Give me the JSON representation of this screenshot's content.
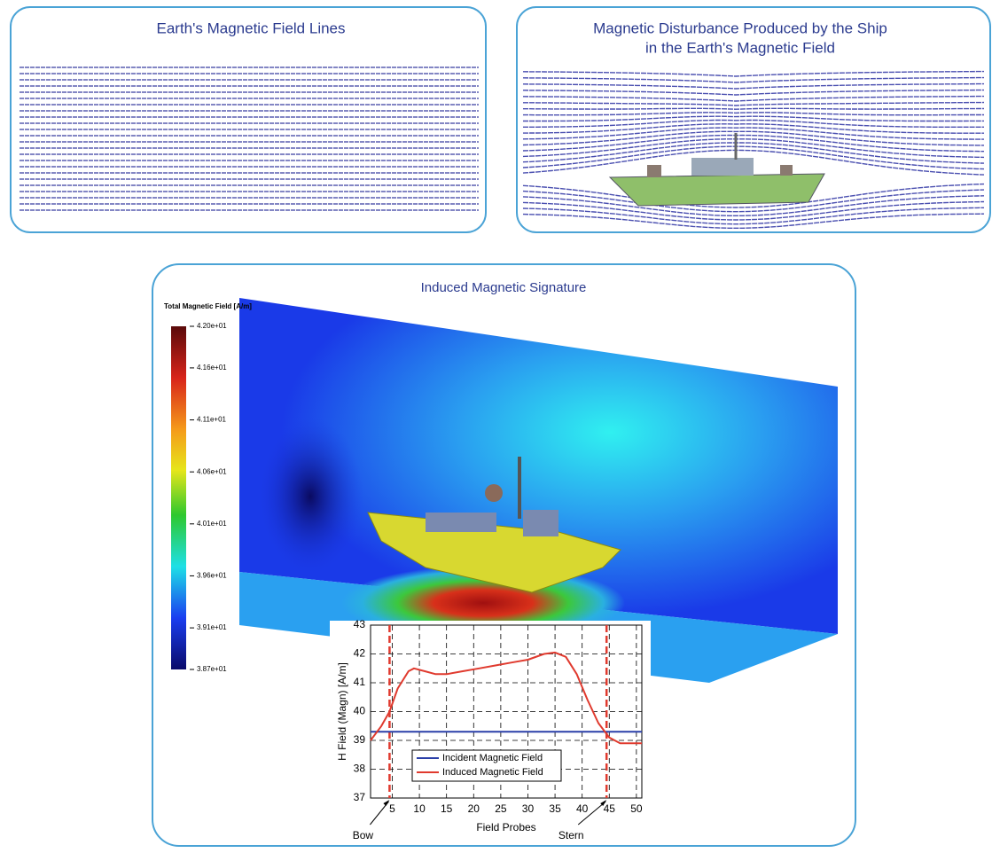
{
  "panels": {
    "field_lines": {
      "title": "Earth's Magnetic Field Lines"
    },
    "disturbance": {
      "title_lines": [
        "Magnetic Disturbance Produced by the Ship",
        "in the Earth's Magnetic Field"
      ]
    },
    "signature": {
      "title": "Induced Magnetic Signature"
    }
  },
  "colorbar": {
    "title": "Total Magnetic Field [A/m]",
    "lim": [
      38.7,
      42
    ],
    "ticks": [
      {
        "value": 42,
        "label": "4.20e+01"
      },
      {
        "value": 41.6,
        "label": "4.16e+01"
      },
      {
        "value": 41.1,
        "label": "4.11e+01"
      },
      {
        "value": 40.6,
        "label": "4.06e+01"
      },
      {
        "value": 40.1,
        "label": "4.01e+01"
      },
      {
        "value": 39.6,
        "label": "3.96e+01"
      },
      {
        "value": 39.1,
        "label": "3.91e+01"
      },
      {
        "value": 38.7,
        "label": "3.87e+01"
      }
    ]
  },
  "chart_data": {
    "type": "line",
    "x_label": "Field Probes",
    "y_label": "H Field (Magn) [A/m]",
    "x": [
      1,
      3,
      4.5,
      6,
      8,
      9,
      11,
      13,
      15,
      18,
      21,
      24,
      27,
      30,
      33,
      35,
      37,
      39,
      41,
      43,
      45,
      47,
      49,
      51
    ],
    "series": [
      {
        "name": "Incident Magnetic Field",
        "color": "#2a3fa8",
        "values": [
          39.3,
          39.3,
          39.3,
          39.3,
          39.3,
          39.3,
          39.3,
          39.3,
          39.3,
          39.3,
          39.3,
          39.3,
          39.3,
          39.3,
          39.3,
          39.3,
          39.3,
          39.3,
          39.3,
          39.3,
          39.3,
          39.3,
          39.3,
          39.3
        ]
      },
      {
        "name": "Induced Magnetic Field",
        "color": "#e03a2e",
        "values": [
          39,
          39.5,
          40,
          40.8,
          41.4,
          41.5,
          41.4,
          41.3,
          41.3,
          41.4,
          41.5,
          41.6,
          41.7,
          41.8,
          42,
          42.05,
          41.9,
          41.3,
          40.4,
          39.6,
          39.1,
          38.9,
          38.9,
          38.9
        ]
      }
    ],
    "xlim": [
      1,
      51
    ],
    "ylim": [
      37,
      43
    ],
    "xticks": [
      5,
      10,
      15,
      20,
      25,
      30,
      35,
      40,
      45,
      50
    ],
    "yticks": [
      37,
      38,
      39,
      40,
      41,
      42,
      43
    ],
    "grid": true,
    "annotations": [
      {
        "text": "Bow",
        "x": 4.5
      },
      {
        "text": "Stern",
        "x": 44.5
      }
    ],
    "marker_color": "#e03a2e"
  }
}
